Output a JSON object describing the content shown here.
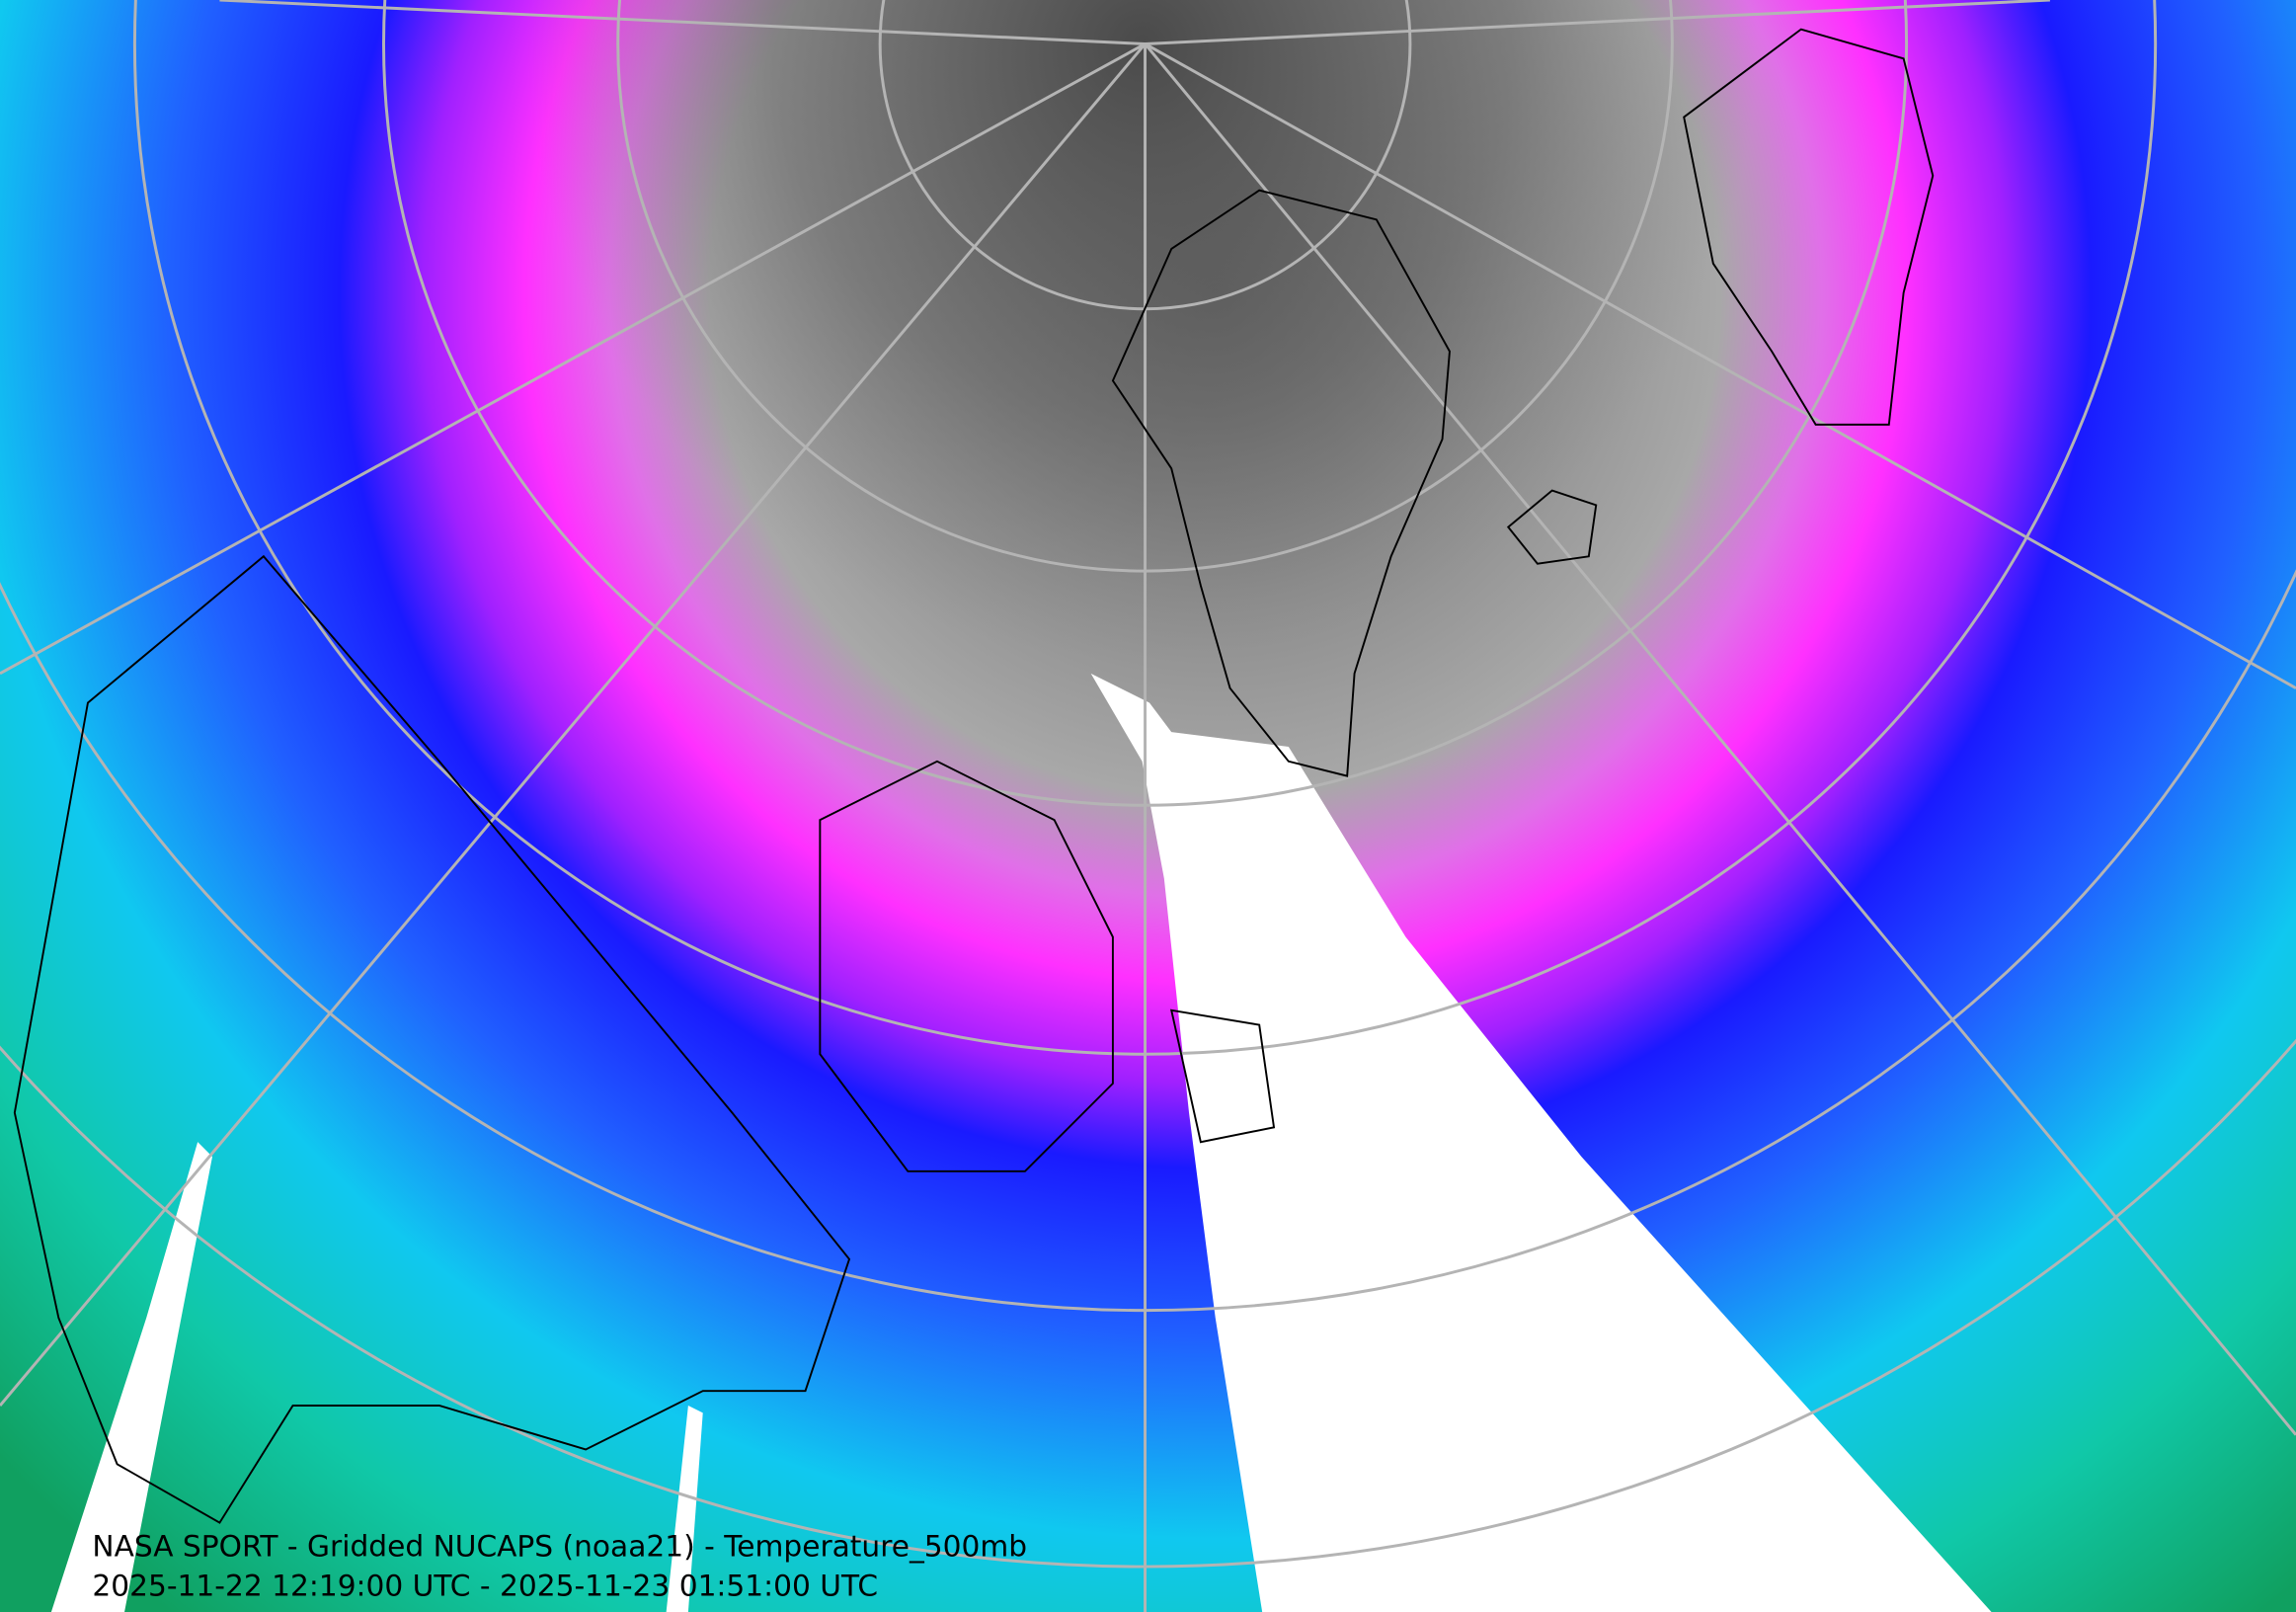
{
  "caption": {
    "title": "NASA SPORT - Gridded NUCAPS (noaa21) - Temperature_500mb",
    "time_range": "2025-11-22 12:19:00 UTC - 2025-11-23 01:51:00 UTC"
  }
}
